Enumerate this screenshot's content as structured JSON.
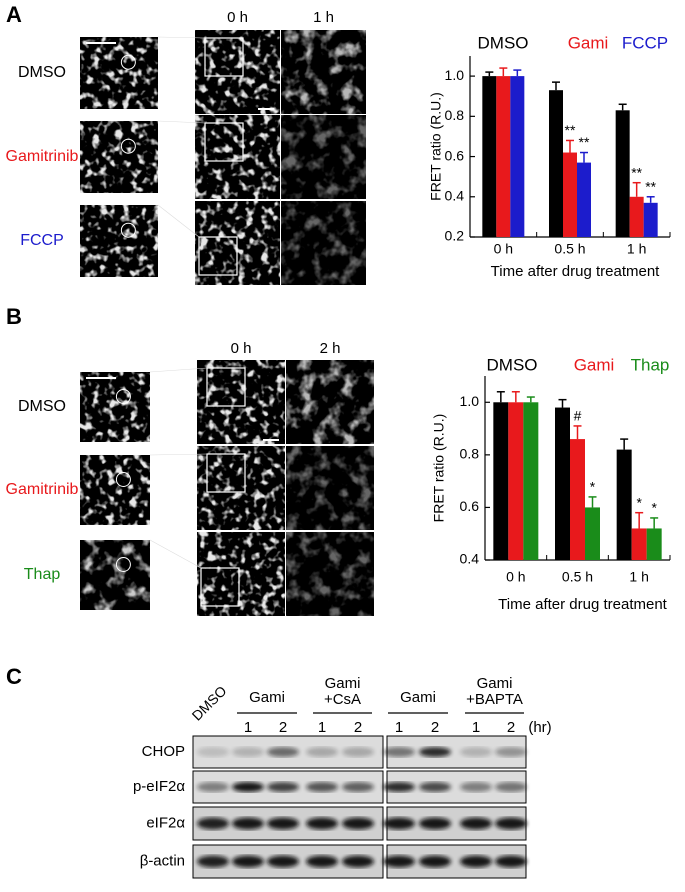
{
  "panel_labels": [
    "A",
    "B",
    "C"
  ],
  "panel_a": {
    "rows": [
      {
        "label": "DMSO",
        "color": "#000000"
      },
      {
        "label": "Gamitrinib",
        "color": "#e8191c"
      },
      {
        "label": "FCCP",
        "color": "#1c1ccc"
      }
    ],
    "columns": [
      "0 h",
      "1 h"
    ]
  },
  "panel_b": {
    "rows": [
      {
        "label": "DMSO",
        "color": "#000000"
      },
      {
        "label": "Gamitrinib",
        "color": "#e8191c"
      },
      {
        "label": "Thap",
        "color": "#1a8c1a"
      }
    ],
    "columns": [
      "0 h",
      "2 h"
    ]
  },
  "panel_c": {
    "lane_groups": [
      {
        "lines": [
          "DMSO"
        ]
      },
      {
        "lines": [
          "Gami"
        ]
      },
      {
        "lines": [
          "Gami",
          "+CsA"
        ]
      },
      {
        "lines": [
          "Gami"
        ]
      },
      {
        "lines": [
          "Gami",
          "+BAPTA"
        ]
      }
    ],
    "lanes": [
      "1",
      "2",
      "1",
      "2",
      "1",
      "2",
      "1",
      "2"
    ],
    "unit": "(hr)",
    "rows": [
      "CHOP",
      "p-eIF2α",
      "eIF2α",
      "β-actin"
    ]
  },
  "chart_data": [
    {
      "type": "bar",
      "categories": [
        "0 h",
        "0.5 h",
        "1 h"
      ],
      "series": [
        {
          "name": "DMSO",
          "color": "#000000",
          "values": [
            1.0,
            0.93,
            0.83
          ],
          "errors": [
            0.02,
            0.04,
            0.03
          ],
          "significance": [
            null,
            null,
            null
          ]
        },
        {
          "name": "Gami",
          "color": "#e8191c",
          "values": [
            1.0,
            0.62,
            0.4
          ],
          "errors": [
            0.04,
            0.06,
            0.07
          ],
          "significance": [
            null,
            "**",
            "**"
          ]
        },
        {
          "name": "FCCP",
          "color": "#1c1ccc",
          "values": [
            1.0,
            0.57,
            0.37
          ],
          "errors": [
            0.03,
            0.05,
            0.03
          ],
          "significance": [
            null,
            "**",
            "**"
          ]
        }
      ],
      "ylim": [
        0.2,
        1.1
      ],
      "yticks": [
        0.2,
        0.4,
        0.6,
        0.8,
        {
          "value": 1.0,
          "label": "1.0"
        }
      ],
      "ylabel": "FRET ratio (R.U.)",
      "xlabel": "Time after drug treatment",
      "legend": "top"
    },
    {
      "type": "bar",
      "categories": [
        "0 h",
        "0.5 h",
        "1 h"
      ],
      "series": [
        {
          "name": "DMSO",
          "color": "#000000",
          "values": [
            1.0,
            0.98,
            0.82
          ],
          "errors": [
            0.04,
            0.03,
            0.04
          ],
          "significance": [
            null,
            null,
            null
          ]
        },
        {
          "name": "Gami",
          "color": "#e8191c",
          "values": [
            1.0,
            0.86,
            0.52
          ],
          "errors": [
            0.04,
            0.05,
            0.06
          ],
          "significance": [
            null,
            "#",
            "*"
          ]
        },
        {
          "name": "Thap",
          "color": "#1a8c1a",
          "values": [
            1.0,
            0.6,
            0.52
          ],
          "errors": [
            0.02,
            0.04,
            0.04
          ],
          "significance": [
            null,
            "*",
            "*"
          ]
        }
      ],
      "ylim": [
        0.4,
        1.1
      ],
      "yticks": [
        0.4,
        0.6,
        0.8,
        {
          "value": 1.0,
          "label": "1.0"
        }
      ],
      "ylabel": "FRET ratio (R.U.)",
      "xlabel": "Time after drug treatment",
      "legend": "top"
    }
  ]
}
